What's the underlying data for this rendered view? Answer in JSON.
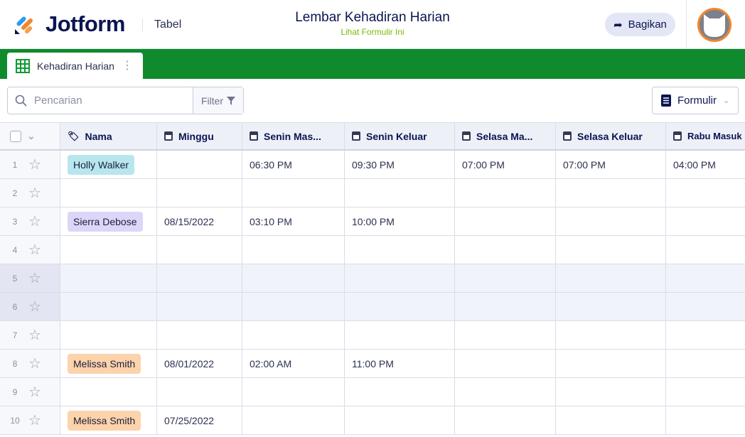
{
  "header": {
    "brand": "Jotform",
    "section": "Tabel",
    "title": "Lembar Kehadiran Harian",
    "subtitle": "Lihat Formulir Ini",
    "share_label": "Bagikan"
  },
  "tab": {
    "label": "Kehadiran Harian"
  },
  "toolbar": {
    "search_placeholder": "Pencarian",
    "filter_label": "Filter",
    "form_label": "Formulir"
  },
  "colors": {
    "brand_green": "#0f8a2c",
    "accent_orange": "#f0872d"
  },
  "columns": [
    "Nama",
    "Minggu",
    "Senin Mas...",
    "Senin Keluar",
    "Selasa Ma...",
    "Selasa Keluar",
    "Rabu Masuk"
  ],
  "rows": [
    {
      "n": "1",
      "name": "Holly Walker",
      "tag": "#b7e6ee",
      "cells": [
        "",
        "06:30 PM",
        "09:30 PM",
        "07:00 PM",
        "07:00 PM",
        "04:00 PM"
      ]
    },
    {
      "n": "2",
      "name": "",
      "cells": [
        "",
        "",
        "",
        "",
        "",
        ""
      ]
    },
    {
      "n": "3",
      "name": "Sierra Debose",
      "tag": "#ddd6f8",
      "cells": [
        "08/15/2022",
        "03:10 PM",
        "10:00 PM",
        "",
        "",
        ""
      ]
    },
    {
      "n": "4",
      "name": "",
      "cells": [
        "",
        "",
        "",
        "",
        "",
        ""
      ]
    },
    {
      "n": "5",
      "name": "",
      "hl": true,
      "cells": [
        "",
        "",
        "",
        "",
        "",
        ""
      ]
    },
    {
      "n": "6",
      "name": "",
      "hl": true,
      "cells": [
        "",
        "",
        "",
        "",
        "",
        ""
      ]
    },
    {
      "n": "7",
      "name": "",
      "cells": [
        "",
        "",
        "",
        "",
        "",
        ""
      ]
    },
    {
      "n": "8",
      "name": "Melissa Smith",
      "tag": "#fdd3ab",
      "cells": [
        "08/01/2022",
        "02:00 AM",
        "11:00 PM",
        "",
        "",
        ""
      ]
    },
    {
      "n": "9",
      "name": "",
      "cells": [
        "",
        "",
        "",
        "",
        "",
        ""
      ]
    },
    {
      "n": "10",
      "name": "Melissa Smith",
      "tag": "#fdd3ab",
      "cells": [
        "07/25/2022",
        "",
        "",
        "",
        "",
        ""
      ]
    }
  ]
}
